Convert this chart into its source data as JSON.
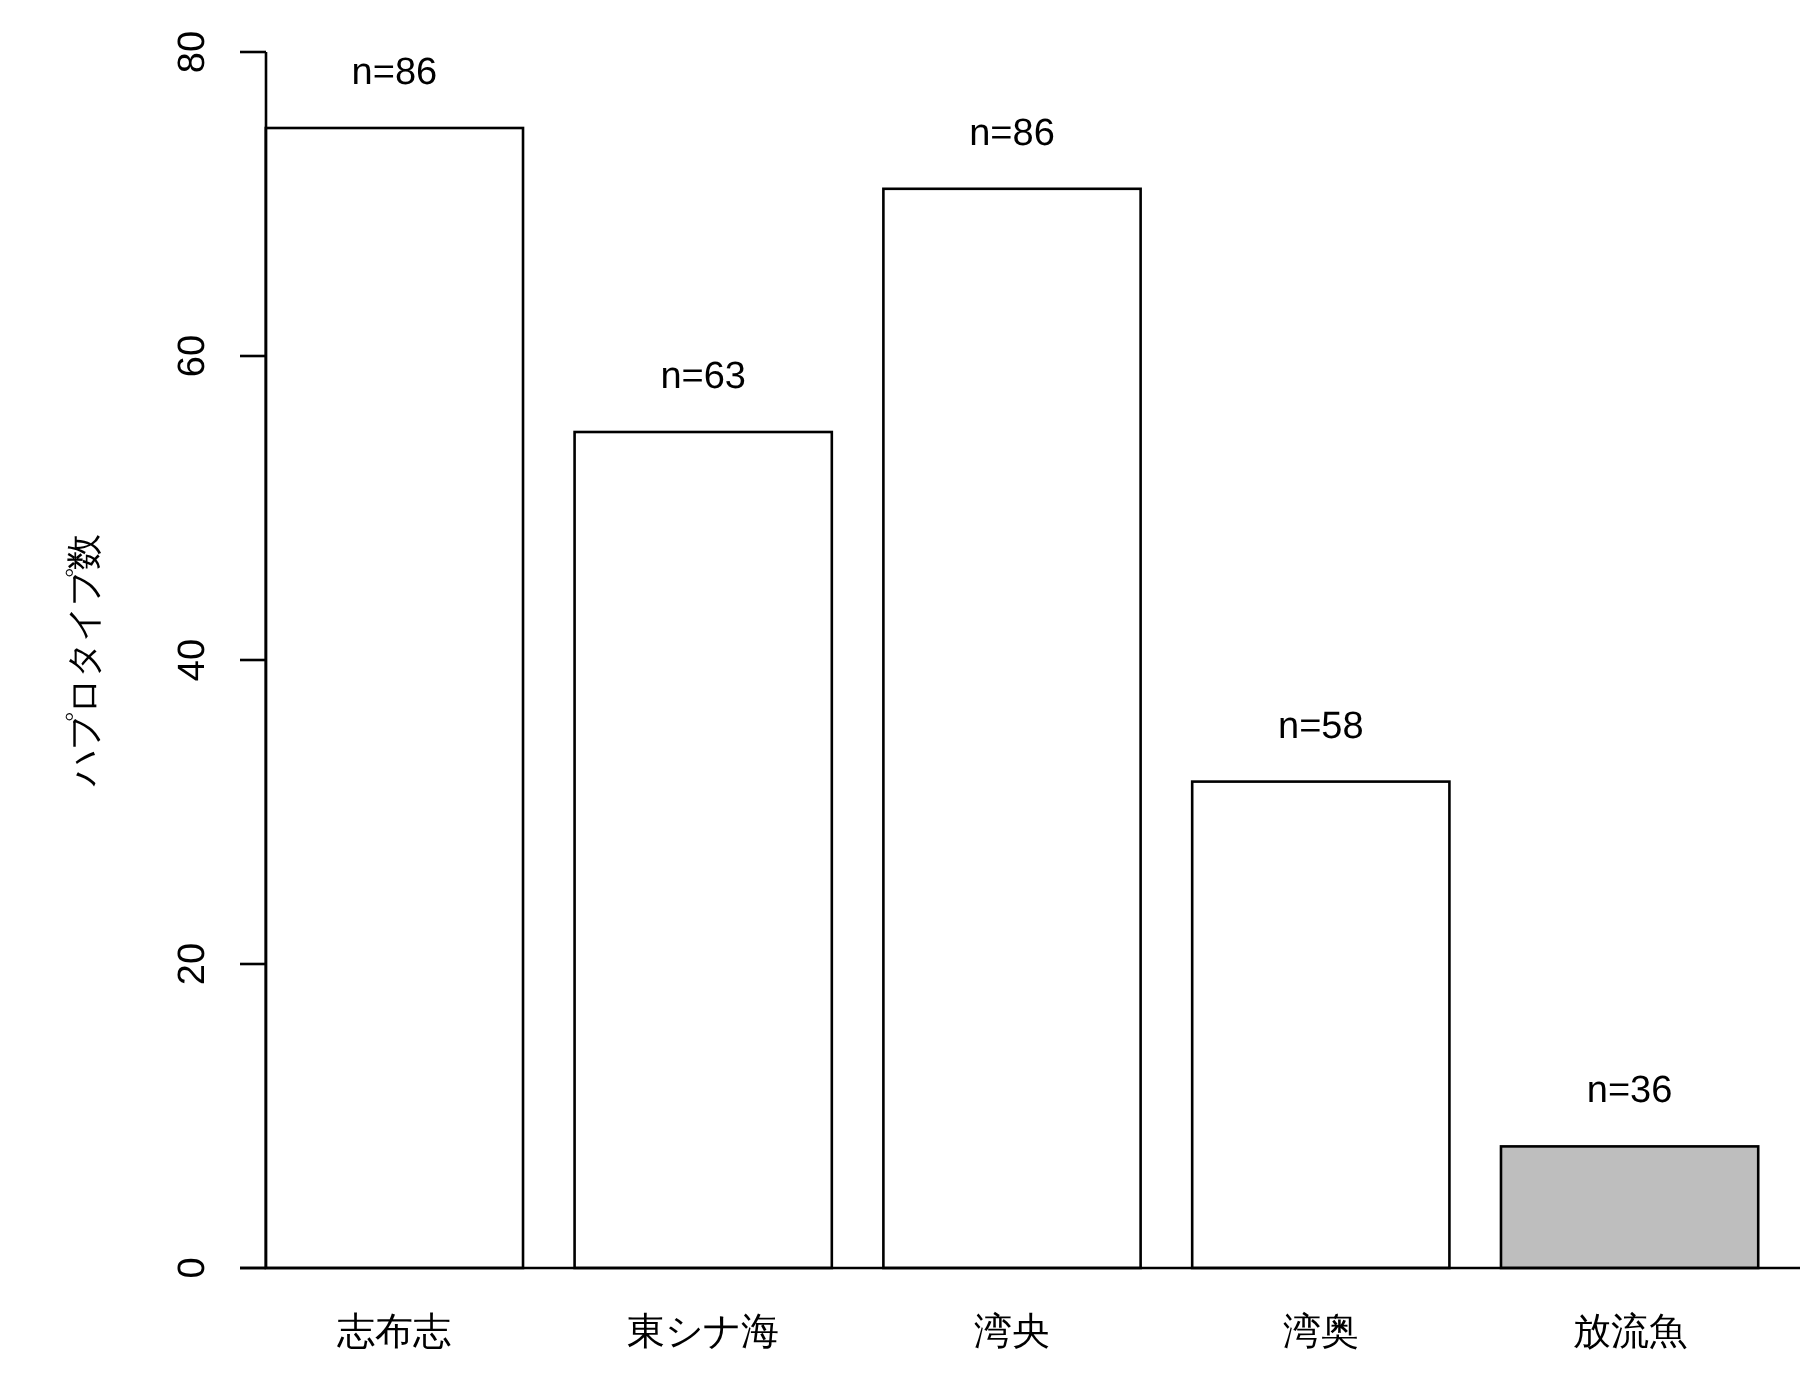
{
  "chart_data": {
    "type": "bar",
    "ylabel": "ハプロタイプ数",
    "categories": [
      "志布志",
      "東シナ海",
      "湾央",
      "湾奥",
      "放流魚"
    ],
    "values": [
      75,
      55,
      71,
      32,
      8
    ],
    "colors": [
      "#ffffff",
      "#ffffff",
      "#ffffff",
      "#ffffff",
      "#bebebe"
    ],
    "annotations": [
      {
        "text": "n=86",
        "x": "志布志",
        "y": 75
      },
      {
        "text": "n=63",
        "x": "東シナ海",
        "y": 55
      },
      {
        "text": "n=86",
        "x": "湾央",
        "y": 71
      },
      {
        "text": "n=58",
        "x": "湾奥",
        "y": 32
      },
      {
        "text": "n=36",
        "x": "放流魚",
        "y": 8
      }
    ],
    "ylim": [
      0,
      80
    ],
    "yticks": [
      0,
      20,
      40,
      60,
      80
    ],
    "grid": false
  }
}
